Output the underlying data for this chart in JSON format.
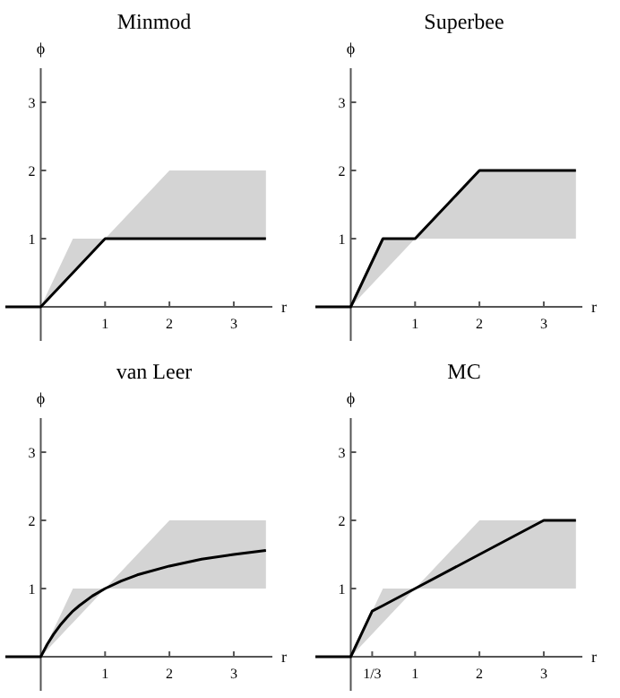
{
  "chart_data": [
    {
      "type": "line",
      "title": "Minmod",
      "xlabel": "r",
      "ylabel": "ϕ",
      "xlim": [
        -0.55,
        3.6
      ],
      "ylim": [
        -0.5,
        3.5
      ],
      "xticks": [
        1,
        2,
        3
      ],
      "yticks": [
        1,
        2,
        3
      ],
      "series": [
        {
          "color": "#000000",
          "x": [
            -0.55,
            0,
            0.5,
            1,
            2,
            3.5
          ],
          "values": [
            0,
            0,
            0.5,
            1,
            1,
            1
          ],
          "lower": [
            null,
            0,
            0.5,
            1,
            1,
            1
          ],
          "upper": [
            null,
            0,
            1,
            1,
            2,
            2
          ]
        }
      ]
    },
    {
      "type": "line",
      "title": "Superbee",
      "xlabel": "r",
      "ylabel": "ϕ",
      "xlim": [
        -0.55,
        3.6
      ],
      "ylim": [
        -0.5,
        3.5
      ],
      "xticks": [
        1,
        2,
        3
      ],
      "yticks": [
        1,
        2,
        3
      ],
      "series": [
        {
          "color": "#000000",
          "x": [
            -0.55,
            0,
            0.5,
            1,
            2,
            3.5
          ],
          "values": [
            0,
            0,
            1,
            1,
            2,
            2
          ],
          "lower": [
            null,
            0,
            0.5,
            1,
            1,
            1
          ],
          "upper": [
            null,
            0,
            1,
            1,
            2,
            2
          ]
        }
      ]
    },
    {
      "type": "line",
      "title": "van Leer",
      "xlabel": "r",
      "ylabel": "ϕ",
      "xlim": [
        -0.55,
        3.6
      ],
      "ylim": [
        -0.5,
        3.5
      ],
      "xticks": [
        1,
        2,
        3
      ],
      "yticks": [
        1,
        2,
        3
      ],
      "series": [
        {
          "color": "#000000",
          "x": [
            -0.55,
            0,
            0.1,
            0.2,
            0.3,
            0.4,
            0.5,
            0.6,
            0.8,
            1,
            1.25,
            1.5,
            2,
            2.5,
            3,
            3.5
          ],
          "values": [
            0,
            0,
            0.18,
            0.33,
            0.46,
            0.57,
            0.67,
            0.75,
            0.89,
            1,
            1.11,
            1.2,
            1.33,
            1.43,
            1.5,
            1.56
          ],
          "lower": [
            null,
            0,
            0.1,
            0.2,
            0.3,
            0.4,
            0.5,
            0.6,
            0.8,
            1,
            1,
            1,
            1,
            1,
            1,
            1
          ],
          "upper": [
            null,
            0,
            0.2,
            0.4,
            0.6,
            0.8,
            1,
            1,
            1,
            1,
            1.25,
            1.5,
            2,
            2,
            2,
            2
          ]
        }
      ]
    },
    {
      "type": "line",
      "title": "MC",
      "xlabel": "r",
      "ylabel": "ϕ",
      "xlim": [
        -0.55,
        3.6
      ],
      "ylim": [
        -0.5,
        3.5
      ],
      "xticks": [
        {
          "value": 0.333,
          "label": "1/3"
        },
        1,
        2,
        3
      ],
      "yticks": [
        1,
        2,
        3
      ],
      "series": [
        {
          "color": "#000000",
          "x": [
            -0.55,
            0,
            0.333,
            0.5,
            1,
            2,
            3,
            3.5
          ],
          "values": [
            0,
            0,
            0.67,
            0.75,
            1,
            1.5,
            2,
            2
          ],
          "lower": [
            null,
            0,
            0.333,
            0.5,
            1,
            1,
            1,
            1
          ],
          "upper": [
            null,
            0,
            0.667,
            1,
            1,
            2,
            2,
            2
          ]
        }
      ]
    }
  ]
}
